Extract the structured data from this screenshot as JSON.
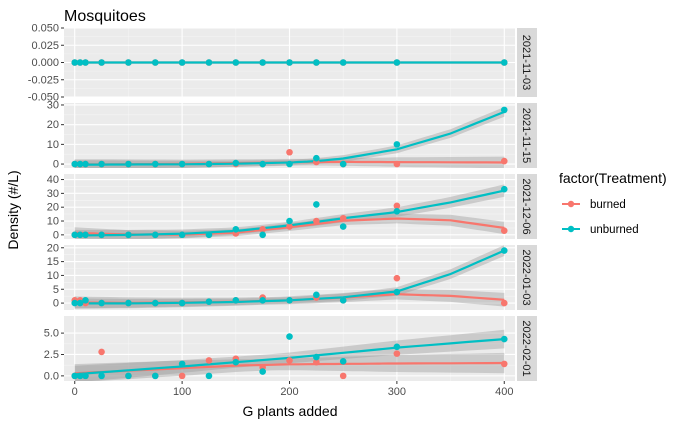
{
  "chart_data": {
    "type": "scatter",
    "title": "Mosquitoes",
    "xlabel": "G plants added",
    "ylabel": "Density (#/L)",
    "xlim": [
      -10,
      410
    ],
    "x_ticks": [
      0,
      100,
      200,
      300,
      400
    ],
    "x_tick_labels": [
      "0",
      "100",
      "200",
      "300",
      "400"
    ],
    "grid": true,
    "legend": {
      "title": "factor(Treatment)",
      "position": "right",
      "entries": [
        {
          "name": "burned",
          "color": "#F8766D"
        },
        {
          "name": "unburned",
          "color": "#00BFC4"
        }
      ]
    },
    "x_values": [
      0,
      5,
      10,
      25,
      50,
      75,
      100,
      125,
      150,
      175,
      200,
      225,
      250,
      300,
      400
    ],
    "panels": [
      {
        "strip": "2021-11-03",
        "ylim": [
          -0.05,
          0.05
        ],
        "y_ticks": [
          -0.05,
          -0.025,
          0,
          0.025,
          0.05
        ],
        "y_tick_labels": [
          "-0.050",
          "-0.025",
          "0.000",
          "0.025",
          "0.050"
        ],
        "burned_points": [
          0,
          0,
          0,
          0,
          0,
          0,
          0,
          0,
          0,
          0,
          0,
          0,
          0,
          0,
          0
        ],
        "unburned_points": [
          0,
          0,
          0,
          0,
          0,
          0,
          0,
          0,
          0,
          0,
          0,
          0,
          0,
          0,
          0
        ],
        "burned_fit": [
          [
            0,
            0
          ],
          [
            400,
            0
          ]
        ],
        "unburned_fit": [
          [
            0,
            0
          ],
          [
            400,
            0
          ]
        ]
      },
      {
        "strip": "2021-11-15",
        "ylim": [
          -2,
          31
        ],
        "y_ticks": [
          0,
          10,
          20,
          30
        ],
        "y_tick_labels": [
          "0",
          "10",
          "20",
          "30"
        ],
        "burned_points": [
          0,
          0,
          0,
          0,
          0,
          0,
          0,
          0,
          0,
          0,
          6,
          1,
          0,
          0,
          1.5
        ],
        "unburned_points": [
          0,
          0,
          0,
          0,
          0,
          0,
          0,
          0,
          0.5,
          0,
          0,
          3,
          0,
          10,
          27.5
        ],
        "burned_fit": [
          [
            0,
            -0.2
          ],
          [
            100,
            0.1
          ],
          [
            200,
            0.9
          ],
          [
            250,
            1.1
          ],
          [
            300,
            1.0
          ],
          [
            400,
            0.8
          ]
        ],
        "unburned_fit": [
          [
            0,
            -0.3
          ],
          [
            50,
            -0.2
          ],
          [
            100,
            -0.1
          ],
          [
            150,
            0.2
          ],
          [
            200,
            0.8
          ],
          [
            225,
            1.5
          ],
          [
            250,
            2.8
          ],
          [
            300,
            7.5
          ],
          [
            350,
            15.5
          ],
          [
            400,
            26.5
          ]
        ],
        "burned_band": 3.0,
        "unburned_band": 2.5
      },
      {
        "strip": "2021-12-06",
        "ylim": [
          -3,
          44
        ],
        "y_ticks": [
          0,
          10,
          20,
          30,
          40
        ],
        "y_tick_labels": [
          "0",
          "10",
          "20",
          "30",
          "40"
        ],
        "burned_points": [
          0,
          0,
          0,
          0,
          0,
          0,
          0,
          0,
          1,
          4,
          6,
          10,
          12,
          21,
          3
        ],
        "unburned_points": [
          0,
          0,
          0,
          0,
          0,
          0,
          0,
          0,
          4,
          0,
          10,
          22,
          6,
          17,
          33
        ],
        "burned_fit": [
          [
            0,
            1.5
          ],
          [
            25,
            0.8
          ],
          [
            50,
            0.3
          ],
          [
            100,
            0.2
          ],
          [
            150,
            1.6
          ],
          [
            200,
            5.5
          ],
          [
            250,
            10.2
          ],
          [
            300,
            11.8
          ],
          [
            350,
            10.5
          ],
          [
            400,
            5.0
          ]
        ],
        "unburned_fit": [
          [
            0,
            -0.5
          ],
          [
            50,
            0.0
          ],
          [
            100,
            0.8
          ],
          [
            150,
            2.8
          ],
          [
            200,
            6.8
          ],
          [
            250,
            12.0
          ],
          [
            300,
            16.5
          ],
          [
            350,
            23.5
          ],
          [
            400,
            32.0
          ]
        ],
        "burned_band": 4.5,
        "unburned_band": 4.5
      },
      {
        "strip": "2022-01-03",
        "ylim": [
          -2.5,
          21
        ],
        "y_ticks": [
          0,
          5,
          10,
          15,
          20
        ],
        "y_tick_labels": [
          "0",
          "5",
          "10",
          "15",
          "20"
        ],
        "burned_points": [
          1,
          1,
          0,
          0,
          0,
          0,
          0,
          0.5,
          1,
          2,
          1,
          2,
          1,
          9,
          0
        ],
        "unburned_points": [
          0,
          0,
          1,
          0,
          0,
          0,
          0,
          0.5,
          1,
          1,
          1,
          3,
          1,
          4,
          19
        ],
        "burned_fit": [
          [
            0,
            0.2
          ],
          [
            50,
            0.1
          ],
          [
            100,
            0.2
          ],
          [
            150,
            0.5
          ],
          [
            200,
            1.0
          ],
          [
            250,
            2.0
          ],
          [
            300,
            3.2
          ],
          [
            350,
            2.6
          ],
          [
            400,
            1.2
          ]
        ],
        "unburned_fit": [
          [
            0,
            -0.1
          ],
          [
            50,
            -0.1
          ],
          [
            100,
            0.1
          ],
          [
            150,
            0.4
          ],
          [
            200,
            1.0
          ],
          [
            250,
            2.1
          ],
          [
            300,
            4.2
          ],
          [
            350,
            10.5
          ],
          [
            400,
            19.0
          ]
        ],
        "burned_band": 2.5,
        "unburned_band": 2.0
      },
      {
        "strip": "2022-02-01",
        "ylim": [
          -0.6,
          7.0
        ],
        "y_ticks": [
          0,
          2.5,
          5
        ],
        "y_tick_labels": [
          "0.0",
          "2.5",
          "5.0"
        ],
        "burned_points": [
          0,
          0,
          0,
          2.8,
          0,
          0,
          0,
          1.8,
          2,
          1,
          1.8,
          1.6,
          0,
          2.6,
          1.4
        ],
        "unburned_points": [
          0,
          0,
          0,
          0,
          0,
          0,
          1.4,
          0,
          1.6,
          0.5,
          4.6,
          2.2,
          1.7,
          3.4,
          4.3
        ],
        "burned_fit": [
          [
            0,
            0.3
          ],
          [
            100,
            0.9
          ],
          [
            150,
            1.2
          ],
          [
            200,
            1.35
          ],
          [
            250,
            1.4
          ],
          [
            300,
            1.45
          ],
          [
            400,
            1.5
          ]
        ],
        "unburned_fit": [
          [
            0,
            0.2
          ],
          [
            100,
            1.1
          ],
          [
            200,
            2.1
          ],
          [
            300,
            3.3
          ],
          [
            400,
            4.3
          ]
        ],
        "burned_band": 1.2,
        "unburned_band": 1.1
      }
    ]
  }
}
